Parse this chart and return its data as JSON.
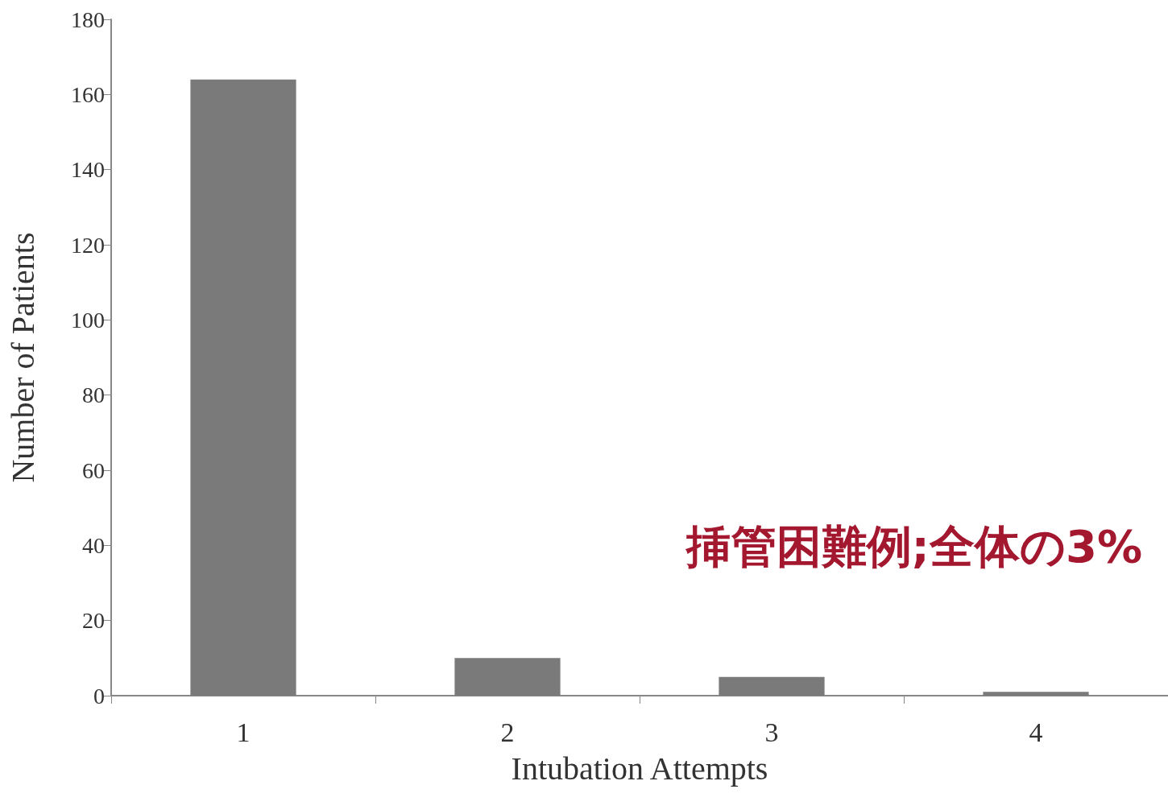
{
  "chart_data": {
    "type": "bar",
    "xlabel": "Intubation Attempts",
    "ylabel": "Number of Patients",
    "categories": [
      "1",
      "2",
      "3",
      "4"
    ],
    "values": [
      164,
      10,
      5,
      1
    ],
    "color": "#7a7a7a",
    "ylim": [
      0,
      180
    ],
    "yticks": [
      0,
      20,
      40,
      60,
      80,
      100,
      120,
      140,
      160,
      180
    ],
    "grid": false,
    "annotations": [
      "挿管困難例;全体の3%"
    ]
  }
}
